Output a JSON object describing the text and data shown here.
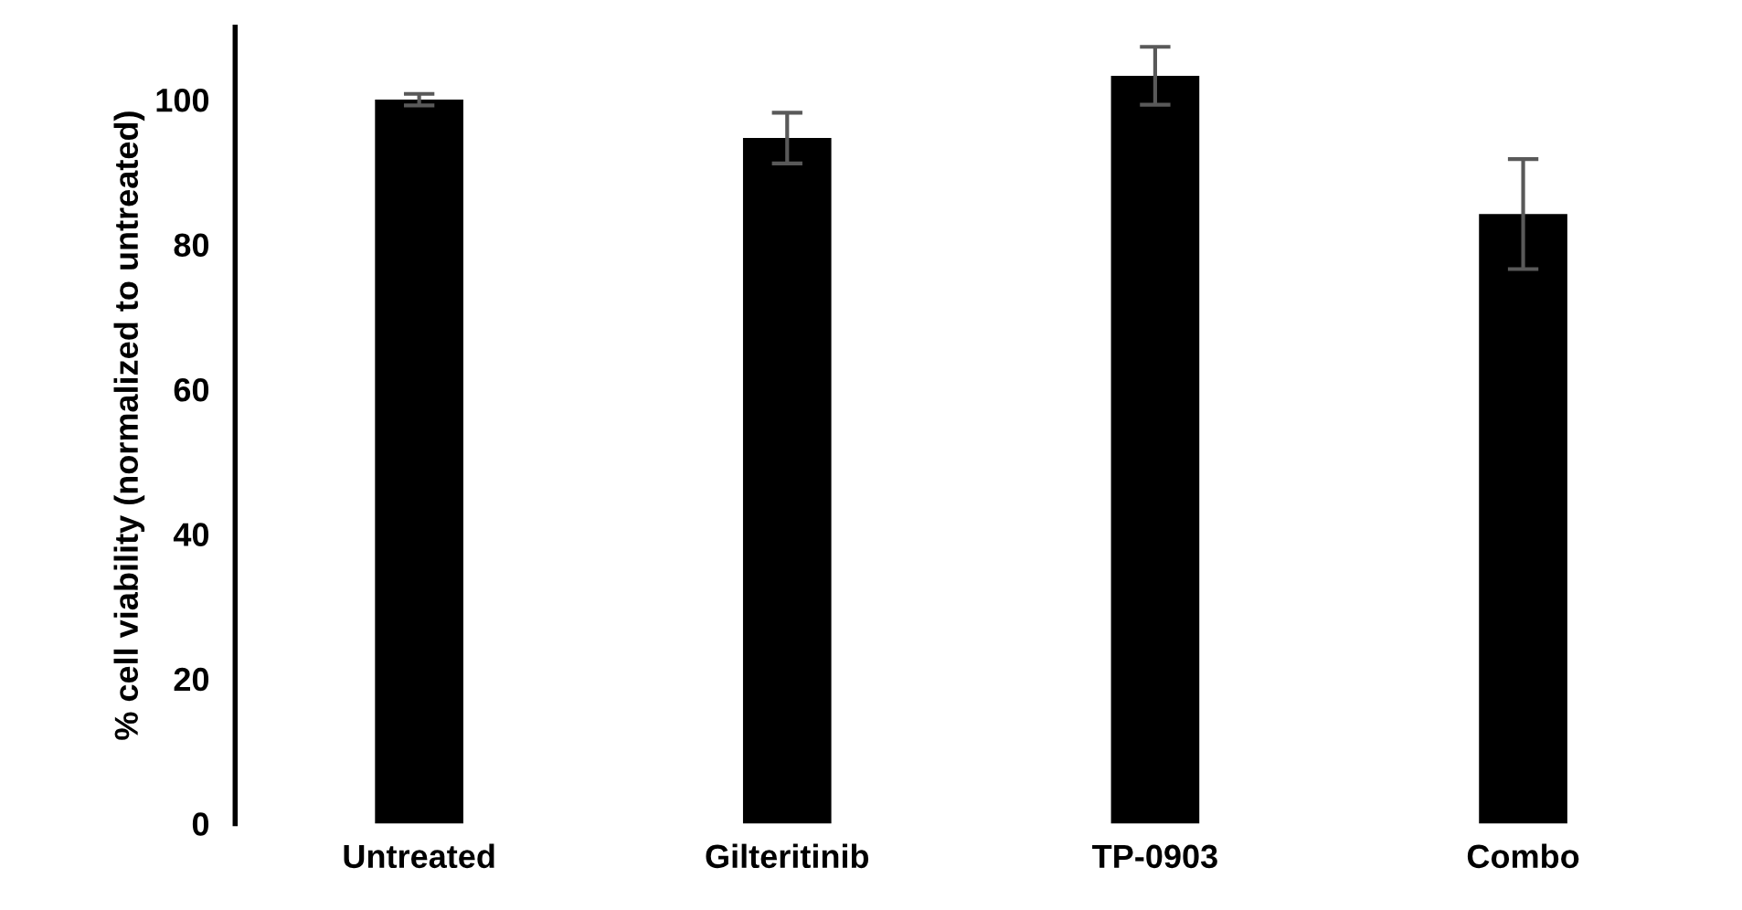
{
  "chart_data": {
    "type": "bar",
    "ylabel": "% cell viability (normalized to untreated)",
    "categories": [
      "Untreated",
      "Gilteritinib",
      "TP-0903",
      "Combo"
    ],
    "values": [
      100,
      94.7,
      103.3,
      84.2
    ],
    "errors": [
      0.8,
      3.5,
      4,
      7.6
    ],
    "color": "#000000",
    "ylim": [
      0,
      110
    ],
    "yticks": [
      0,
      20,
      40,
      60,
      80,
      100
    ],
    "grid": false
  }
}
